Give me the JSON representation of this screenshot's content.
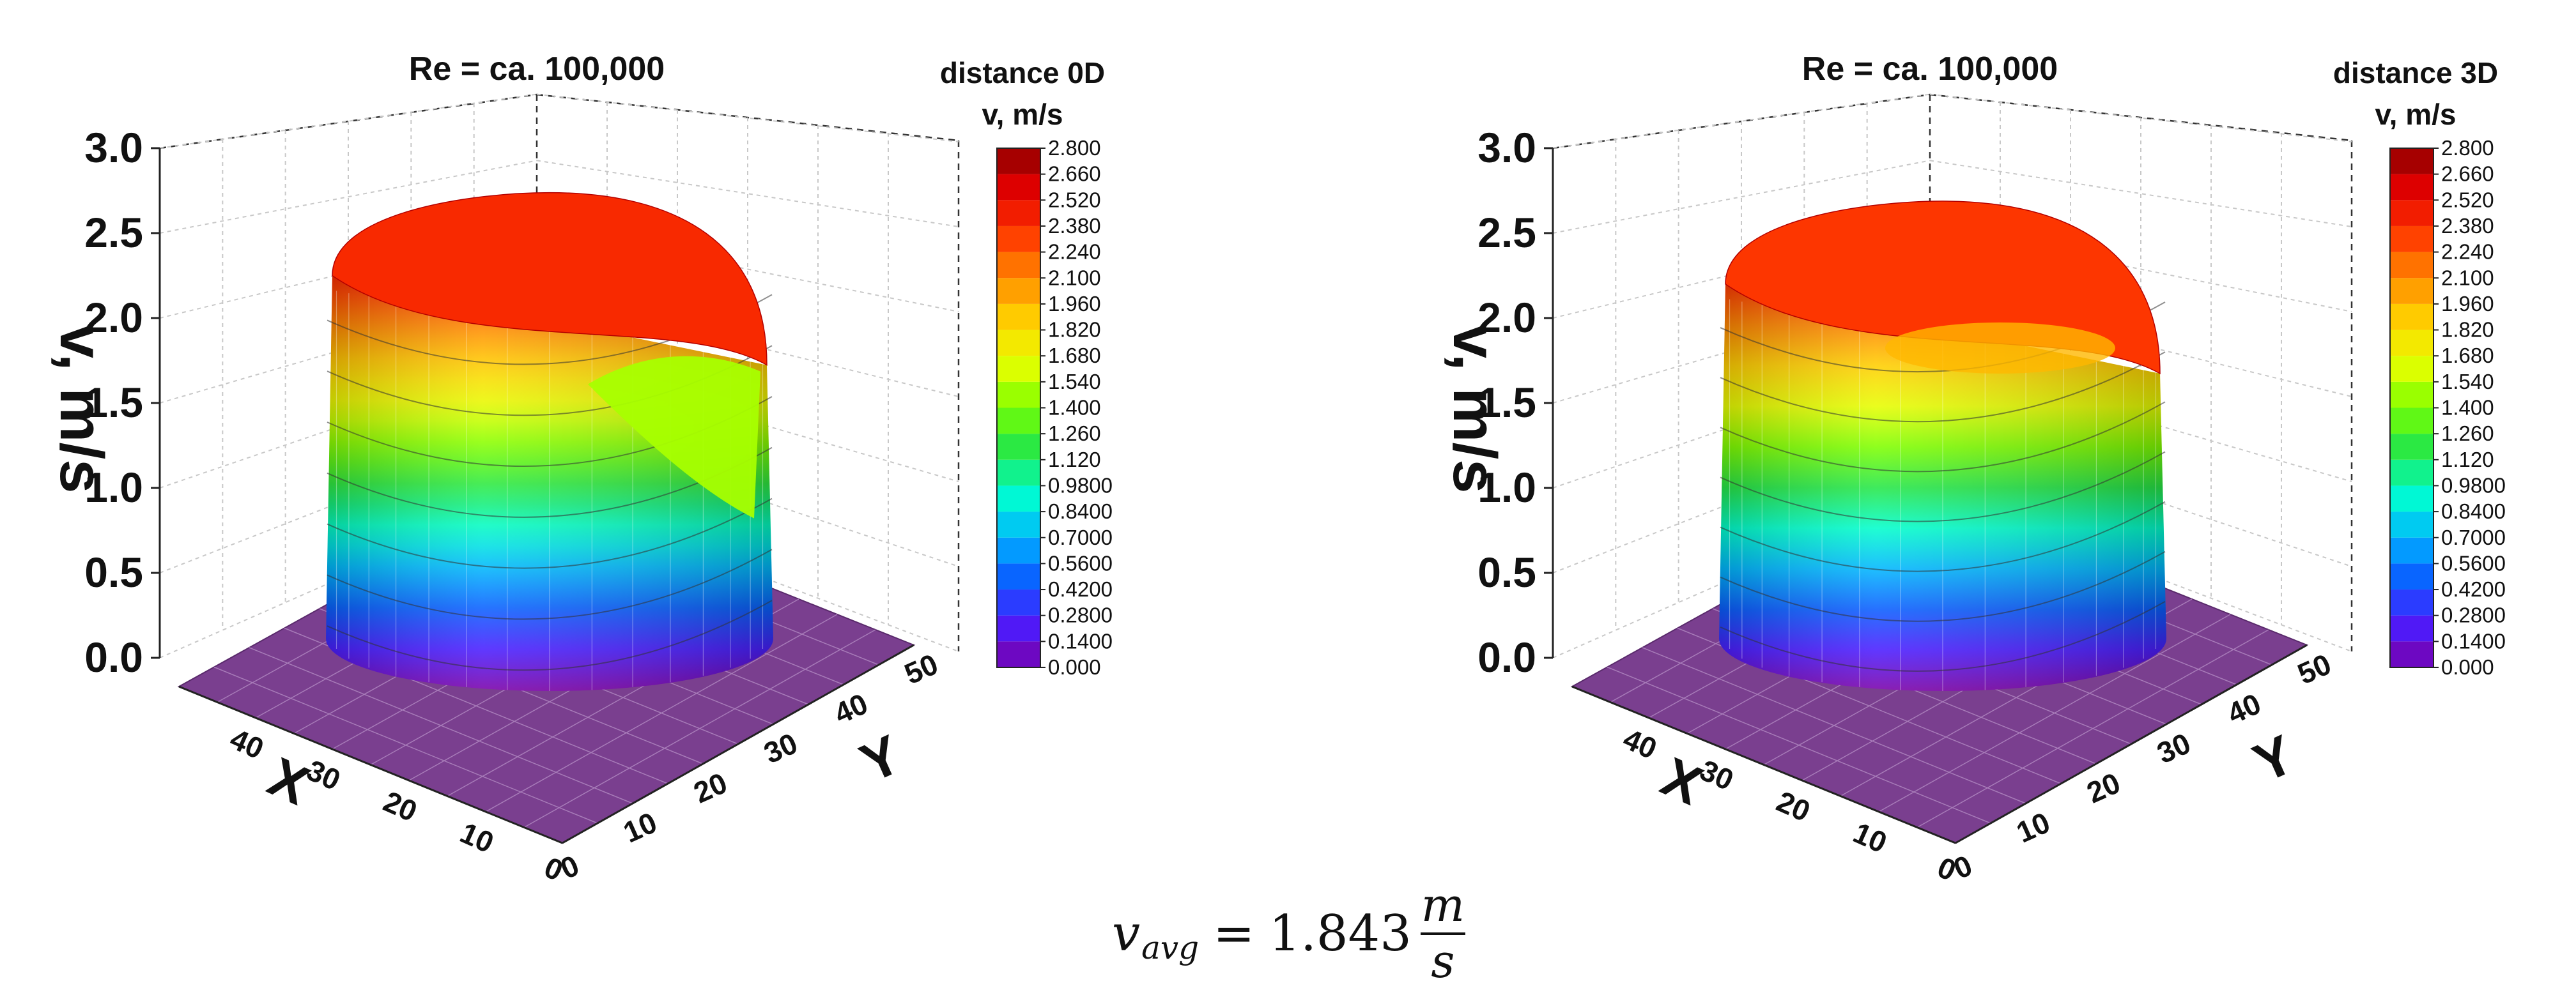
{
  "chart_data": [
    {
      "type": "surface3d",
      "title": "Re = ca. 100,000",
      "colorbar_title_line1": "distance 0D",
      "colorbar_title_line2": "v, m/s",
      "zlabel": "v, m/s",
      "xlabel": "X",
      "ylabel": "Y",
      "z_ticks": [
        "0.0",
        "0.5",
        "1.0",
        "1.5",
        "2.0",
        "2.5",
        "3.0"
      ],
      "zlim": [
        0,
        3
      ],
      "x_ticks": [
        "0",
        "10",
        "20",
        "30",
        "40"
      ],
      "y_ticks": [
        "0",
        "10",
        "20",
        "30",
        "40",
        "50"
      ],
      "xlim": [
        0,
        50
      ],
      "ylim": [
        0,
        50
      ],
      "colorbar_ticks": [
        "0.000",
        "0.1400",
        "0.2800",
        "0.4200",
        "0.5600",
        "0.7000",
        "0.8400",
        "0.9800",
        "1.120",
        "1.260",
        "1.400",
        "1.540",
        "1.680",
        "1.820",
        "1.960",
        "2.100",
        "2.240",
        "2.380",
        "2.520",
        "2.660",
        "2.800"
      ],
      "colorbar_range": [
        0,
        2.8
      ],
      "plateau_velocity": 2.4,
      "notch": true
    },
    {
      "type": "surface3d",
      "title": "Re = ca. 100,000",
      "colorbar_title_line1": "distance 3D",
      "colorbar_title_line2": "v, m/s",
      "zlabel": "v, m/s",
      "xlabel": "X",
      "ylabel": "Y",
      "z_ticks": [
        "0.0",
        "0.5",
        "1.0",
        "1.5",
        "2.0",
        "2.5",
        "3.0"
      ],
      "zlim": [
        0,
        3
      ],
      "x_ticks": [
        "0",
        "10",
        "20",
        "30",
        "40"
      ],
      "y_ticks": [
        "0",
        "10",
        "20",
        "30",
        "40",
        "50"
      ],
      "xlim": [
        0,
        50
      ],
      "ylim": [
        0,
        50
      ],
      "colorbar_ticks": [
        "0.000",
        "0.1400",
        "0.2800",
        "0.4200",
        "0.5600",
        "0.7000",
        "0.8400",
        "0.9800",
        "1.120",
        "1.260",
        "1.400",
        "1.540",
        "1.680",
        "1.820",
        "1.960",
        "2.100",
        "2.240",
        "2.380",
        "2.520",
        "2.660",
        "2.800"
      ],
      "colorbar_range": [
        0,
        2.8
      ],
      "plateau_velocity": 2.35,
      "notch": false
    }
  ],
  "formula": {
    "symbol": "v",
    "subscript": "avg",
    "equals": "=",
    "value": "1.843",
    "unit_numerator": "m",
    "unit_denominator": "s"
  },
  "colors": {
    "floor": "#7a3f8f",
    "colormap": [
      "#7b00a8",
      "#4b1cff",
      "#0a5cff",
      "#00b4ff",
      "#00ffd0",
      "#22e64a",
      "#7aff00",
      "#e6ff00",
      "#ffd200",
      "#ff8a00",
      "#ff3a00",
      "#e60000",
      "#8b0000"
    ]
  }
}
